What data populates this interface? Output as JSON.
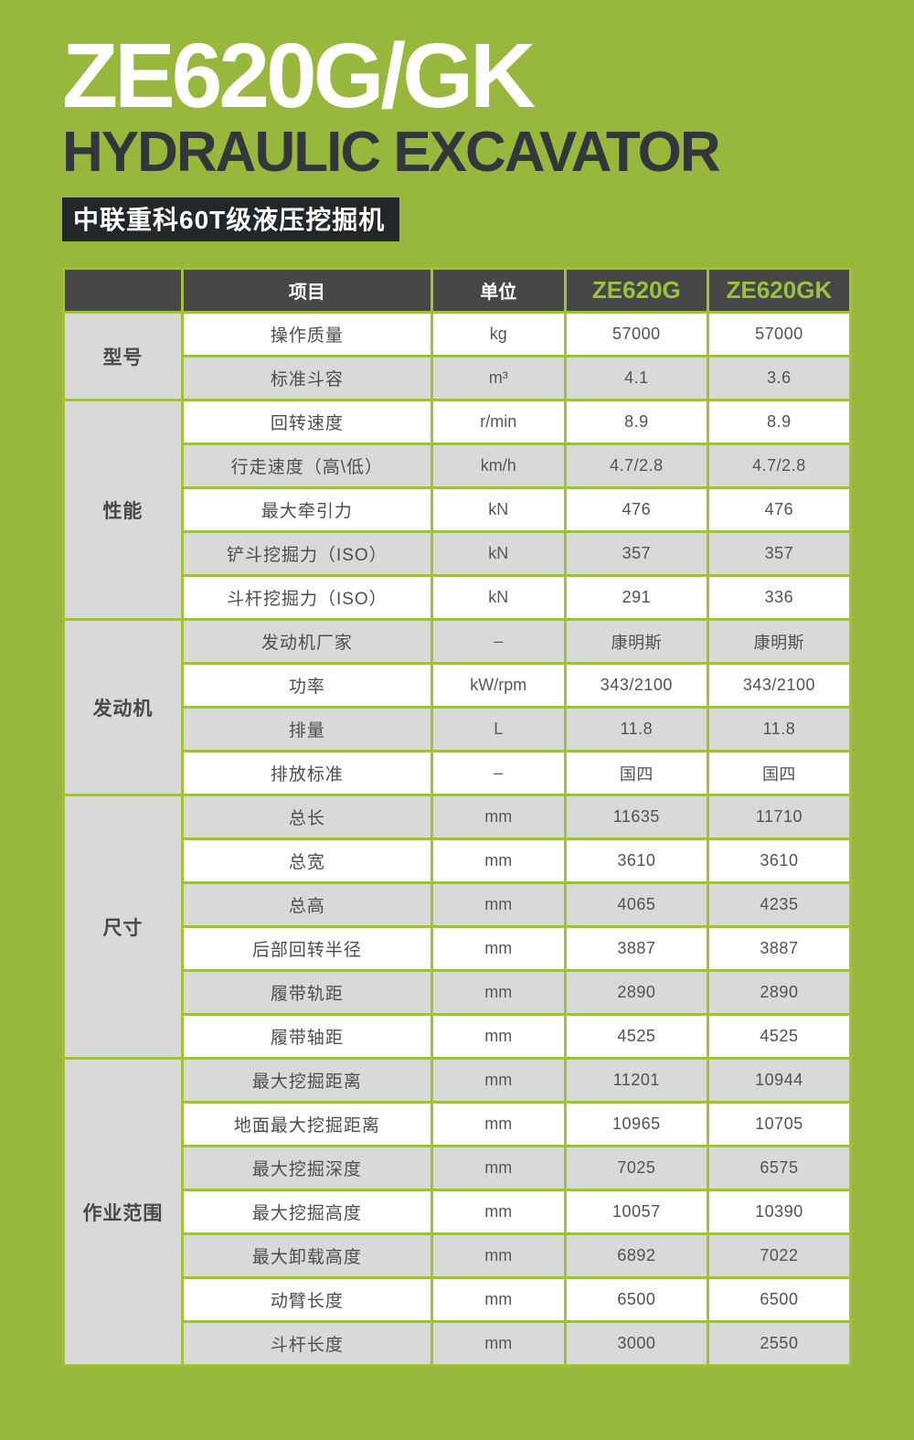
{
  "page": {
    "title": "ZE620G/GK",
    "subtitle": "HYDRAULIC EXCAVATOR",
    "banner": "中联重科60T级液压挖掘机"
  },
  "colors": {
    "background_green": "#97b83d",
    "table_grid_green": "#a0c13c",
    "header_dark": "#474747",
    "banner_black": "#24272a",
    "subtitle_dark": "#33373b",
    "model_green_text": "#9cc23d",
    "row_white": "#ffffff",
    "row_gray": "#d9d9d9",
    "cell_text": "#505355"
  },
  "table": {
    "headers": {
      "item": "项目",
      "unit": "单位",
      "model_g": "ZE620G",
      "model_gk": "ZE620GK"
    },
    "groups": [
      {
        "category": "型号",
        "rows": [
          {
            "item": "操作质量",
            "unit": "kg",
            "g": "57000",
            "gk": "57000"
          },
          {
            "item": "标准斗容",
            "unit": "m³",
            "g": "4.1",
            "gk": "3.6"
          }
        ]
      },
      {
        "category": "性能",
        "rows": [
          {
            "item": "回转速度",
            "unit": "r/min",
            "g": "8.9",
            "gk": "8.9"
          },
          {
            "item": "行走速度（高\\低）",
            "unit": "km/h",
            "g": "4.7/2.8",
            "gk": "4.7/2.8"
          },
          {
            "item": "最大牵引力",
            "unit": "kN",
            "g": "476",
            "gk": "476"
          },
          {
            "item": "铲斗挖掘力（ISO）",
            "unit": "kN",
            "g": "357",
            "gk": "357"
          },
          {
            "item": "斗杆挖掘力（ISO）",
            "unit": "kN",
            "g": "291",
            "gk": "336"
          }
        ]
      },
      {
        "category": "发动机",
        "rows": [
          {
            "item": "发动机厂家",
            "unit": "–",
            "g": "康明斯",
            "gk": "康明斯"
          },
          {
            "item": "功率",
            "unit": "kW/rpm",
            "g": "343/2100",
            "gk": "343/2100"
          },
          {
            "item": "排量",
            "unit": "L",
            "g": "11.8",
            "gk": "11.8"
          },
          {
            "item": "排放标准",
            "unit": "–",
            "g": "国四",
            "gk": "国四"
          }
        ]
      },
      {
        "category": "尺寸",
        "rows": [
          {
            "item": "总长",
            "unit": "mm",
            "g": "11635",
            "gk": "11710"
          },
          {
            "item": "总宽",
            "unit": "mm",
            "g": "3610",
            "gk": "3610"
          },
          {
            "item": "总高",
            "unit": "mm",
            "g": "4065",
            "gk": "4235"
          },
          {
            "item": "后部回转半径",
            "unit": "mm",
            "g": "3887",
            "gk": "3887"
          },
          {
            "item": "履带轨距",
            "unit": "mm",
            "g": "2890",
            "gk": "2890"
          },
          {
            "item": "履带轴距",
            "unit": "mm",
            "g": "4525",
            "gk": "4525"
          }
        ]
      },
      {
        "category": "作业范围",
        "rows": [
          {
            "item": "最大挖掘距离",
            "unit": "mm",
            "g": "11201",
            "gk": "10944"
          },
          {
            "item": "地面最大挖掘距离",
            "unit": "mm",
            "g": "10965",
            "gk": "10705"
          },
          {
            "item": "最大挖掘深度",
            "unit": "mm",
            "g": "7025",
            "gk": "6575"
          },
          {
            "item": "最大挖掘高度",
            "unit": "mm",
            "g": "10057",
            "gk": "10390"
          },
          {
            "item": "最大卸载高度",
            "unit": "mm",
            "g": "6892",
            "gk": "7022"
          },
          {
            "item": "动臂长度",
            "unit": "mm",
            "g": "6500",
            "gk": "6500"
          },
          {
            "item": "斗杆长度",
            "unit": "mm",
            "g": "3000",
            "gk": "2550"
          }
        ]
      }
    ]
  }
}
